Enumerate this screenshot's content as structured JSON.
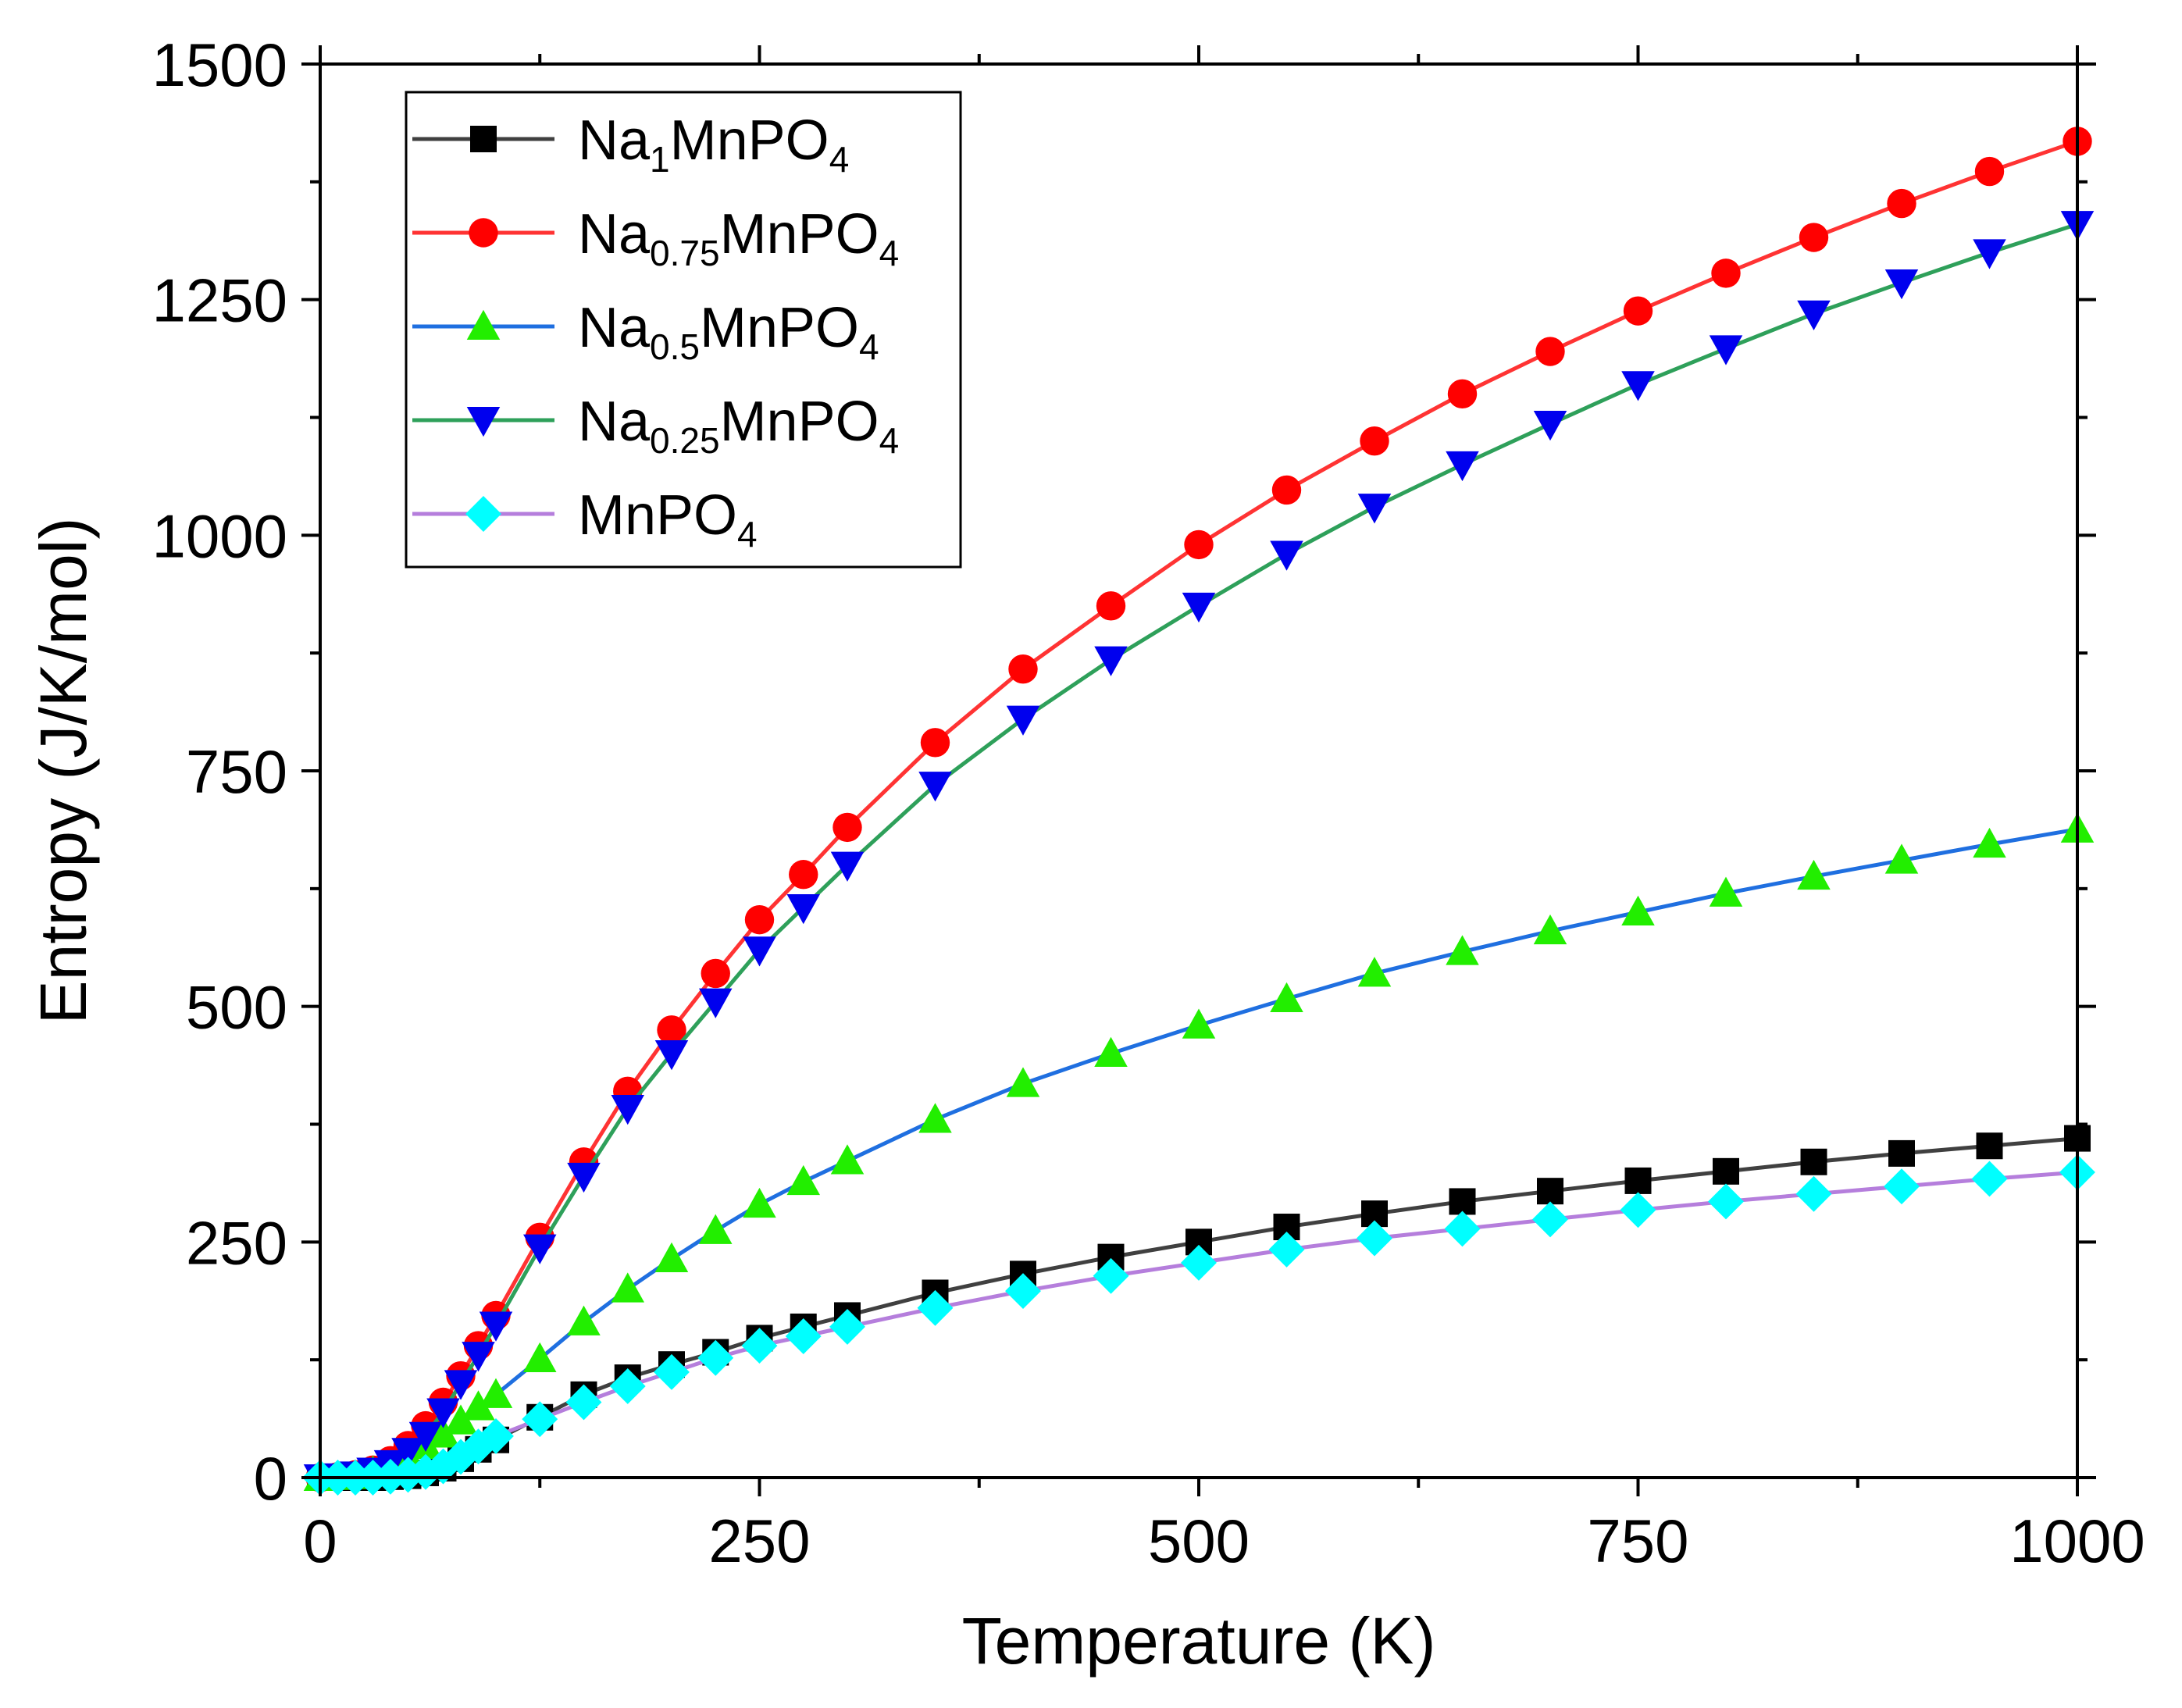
{
  "chart_data": {
    "type": "line",
    "title": "",
    "xlabel": "Temperature (K)",
    "ylabel": "Entropy (J/K/mol)",
    "xlim": [
      0,
      1000
    ],
    "ylim": [
      0,
      1500
    ],
    "xticks": [
      0,
      250,
      500,
      750,
      1000
    ],
    "yticks": [
      0,
      250,
      500,
      750,
      1000,
      1250,
      1500
    ],
    "xtick_labels": [
      "0",
      "250",
      "500",
      "750",
      "1000"
    ],
    "ytick_labels": [
      "0",
      "250",
      "500",
      "750",
      "1000",
      "1250",
      "1500"
    ],
    "grid": false,
    "legend_position": "top-left",
    "series": [
      {
        "name": "Na1MnPO4",
        "legend_parts": [
          {
            "t": "Na",
            "sub": false
          },
          {
            "t": "1",
            "sub": true
          },
          {
            "t": "MnPO",
            "sub": false
          },
          {
            "t": "4",
            "sub": true
          }
        ],
        "line_color": "#404040",
        "marker_color": "#000000",
        "marker": "square",
        "x": [
          0,
          10,
          20,
          30,
          40,
          50,
          60,
          70,
          80,
          90,
          100,
          125,
          150,
          175,
          200,
          225,
          250,
          275,
          300,
          350,
          400,
          450,
          500,
          550,
          600,
          650,
          700,
          750,
          800,
          850,
          900,
          950,
          1000
        ],
        "y": [
          0,
          0,
          0,
          0,
          1,
          2,
          5,
          10,
          20,
          30,
          40,
          64,
          88,
          106,
          120,
          133,
          148,
          160,
          172,
          196,
          216,
          234,
          250,
          266,
          280,
          293,
          304,
          315,
          325,
          335,
          344,
          352,
          360
        ]
      },
      {
        "name": "Na0.75MnPO4",
        "legend_parts": [
          {
            "t": "Na",
            "sub": false
          },
          {
            "t": "0.75",
            "sub": true
          },
          {
            "t": "MnPO",
            "sub": false
          },
          {
            "t": "4",
            "sub": true
          }
        ],
        "line_color": "#ff3333",
        "marker_color": "#ff0000",
        "marker": "circle",
        "x": [
          0,
          10,
          20,
          30,
          40,
          50,
          60,
          70,
          80,
          90,
          100,
          125,
          150,
          175,
          200,
          225,
          250,
          275,
          300,
          350,
          400,
          450,
          500,
          550,
          600,
          650,
          700,
          750,
          800,
          850,
          900,
          950,
          1000
        ],
        "y": [
          0,
          1,
          3,
          8,
          18,
          34,
          55,
          80,
          108,
          140,
          172,
          255,
          335,
          410,
          475,
          535,
          592,
          640,
          690,
          780,
          858,
          925,
          990,
          1048,
          1100,
          1150,
          1195,
          1238,
          1278,
          1316,
          1352,
          1386,
          1418
        ]
      },
      {
        "name": "Na0.5MnPO4",
        "legend_parts": [
          {
            "t": "Na",
            "sub": false
          },
          {
            "t": "0.5",
            "sub": true
          },
          {
            "t": "MnPO",
            "sub": false
          },
          {
            "t": "4",
            "sub": true
          }
        ],
        "line_color": "#1f6fe0",
        "marker_color": "#22ee00",
        "marker": "triangle-up",
        "x": [
          0,
          10,
          20,
          30,
          40,
          50,
          60,
          70,
          80,
          90,
          100,
          125,
          150,
          175,
          200,
          225,
          250,
          275,
          300,
          350,
          400,
          450,
          500,
          550,
          600,
          650,
          700,
          750,
          800,
          850,
          900,
          950,
          1000
        ],
        "y": [
          0,
          1,
          2,
          6,
          12,
          22,
          34,
          46,
          60,
          75,
          88,
          126,
          165,
          200,
          232,
          262,
          290,
          314,
          336,
          380,
          418,
          450,
          480,
          508,
          535,
          558,
          580,
          600,
          620,
          638,
          655,
          672,
          688
        ]
      },
      {
        "name": "Na0.25MnPO4",
        "legend_parts": [
          {
            "t": "Na",
            "sub": false
          },
          {
            "t": "0.25",
            "sub": true
          },
          {
            "t": "MnPO",
            "sub": false
          },
          {
            "t": "4",
            "sub": true
          }
        ],
        "line_color": "#2ea05a",
        "marker_color": "#0000ee",
        "marker": "triangle-down",
        "x": [
          0,
          10,
          20,
          30,
          40,
          50,
          60,
          70,
          80,
          90,
          100,
          125,
          150,
          175,
          200,
          225,
          250,
          275,
          300,
          350,
          400,
          450,
          500,
          550,
          600,
          650,
          700,
          750,
          800,
          850,
          900,
          950,
          1000
        ],
        "y": [
          0,
          1,
          3,
          7,
          15,
          28,
          45,
          70,
          100,
          130,
          162,
          244,
          320,
          392,
          450,
          505,
          560,
          605,
          650,
          735,
          805,
          868,
          925,
          980,
          1030,
          1075,
          1118,
          1160,
          1198,
          1235,
          1268,
          1300,
          1330
        ]
      },
      {
        "name": "MnPO4",
        "legend_parts": [
          {
            "t": "MnPO",
            "sub": false
          },
          {
            "t": "4",
            "sub": true
          }
        ],
        "line_color": "#b57edc",
        "marker_color": "#00ffff",
        "marker": "diamond",
        "x": [
          0,
          10,
          20,
          30,
          40,
          50,
          60,
          70,
          80,
          90,
          100,
          125,
          150,
          175,
          200,
          225,
          250,
          275,
          300,
          350,
          400,
          450,
          500,
          550,
          600,
          650,
          700,
          750,
          800,
          850,
          900,
          950,
          1000
        ],
        "y": [
          0,
          0,
          0,
          0,
          1,
          3,
          6,
          12,
          22,
          33,
          44,
          62,
          80,
          97,
          112,
          127,
          140,
          150,
          160,
          180,
          198,
          214,
          228,
          242,
          254,
          264,
          274,
          284,
          293,
          301,
          309,
          317,
          324
        ]
      }
    ]
  }
}
